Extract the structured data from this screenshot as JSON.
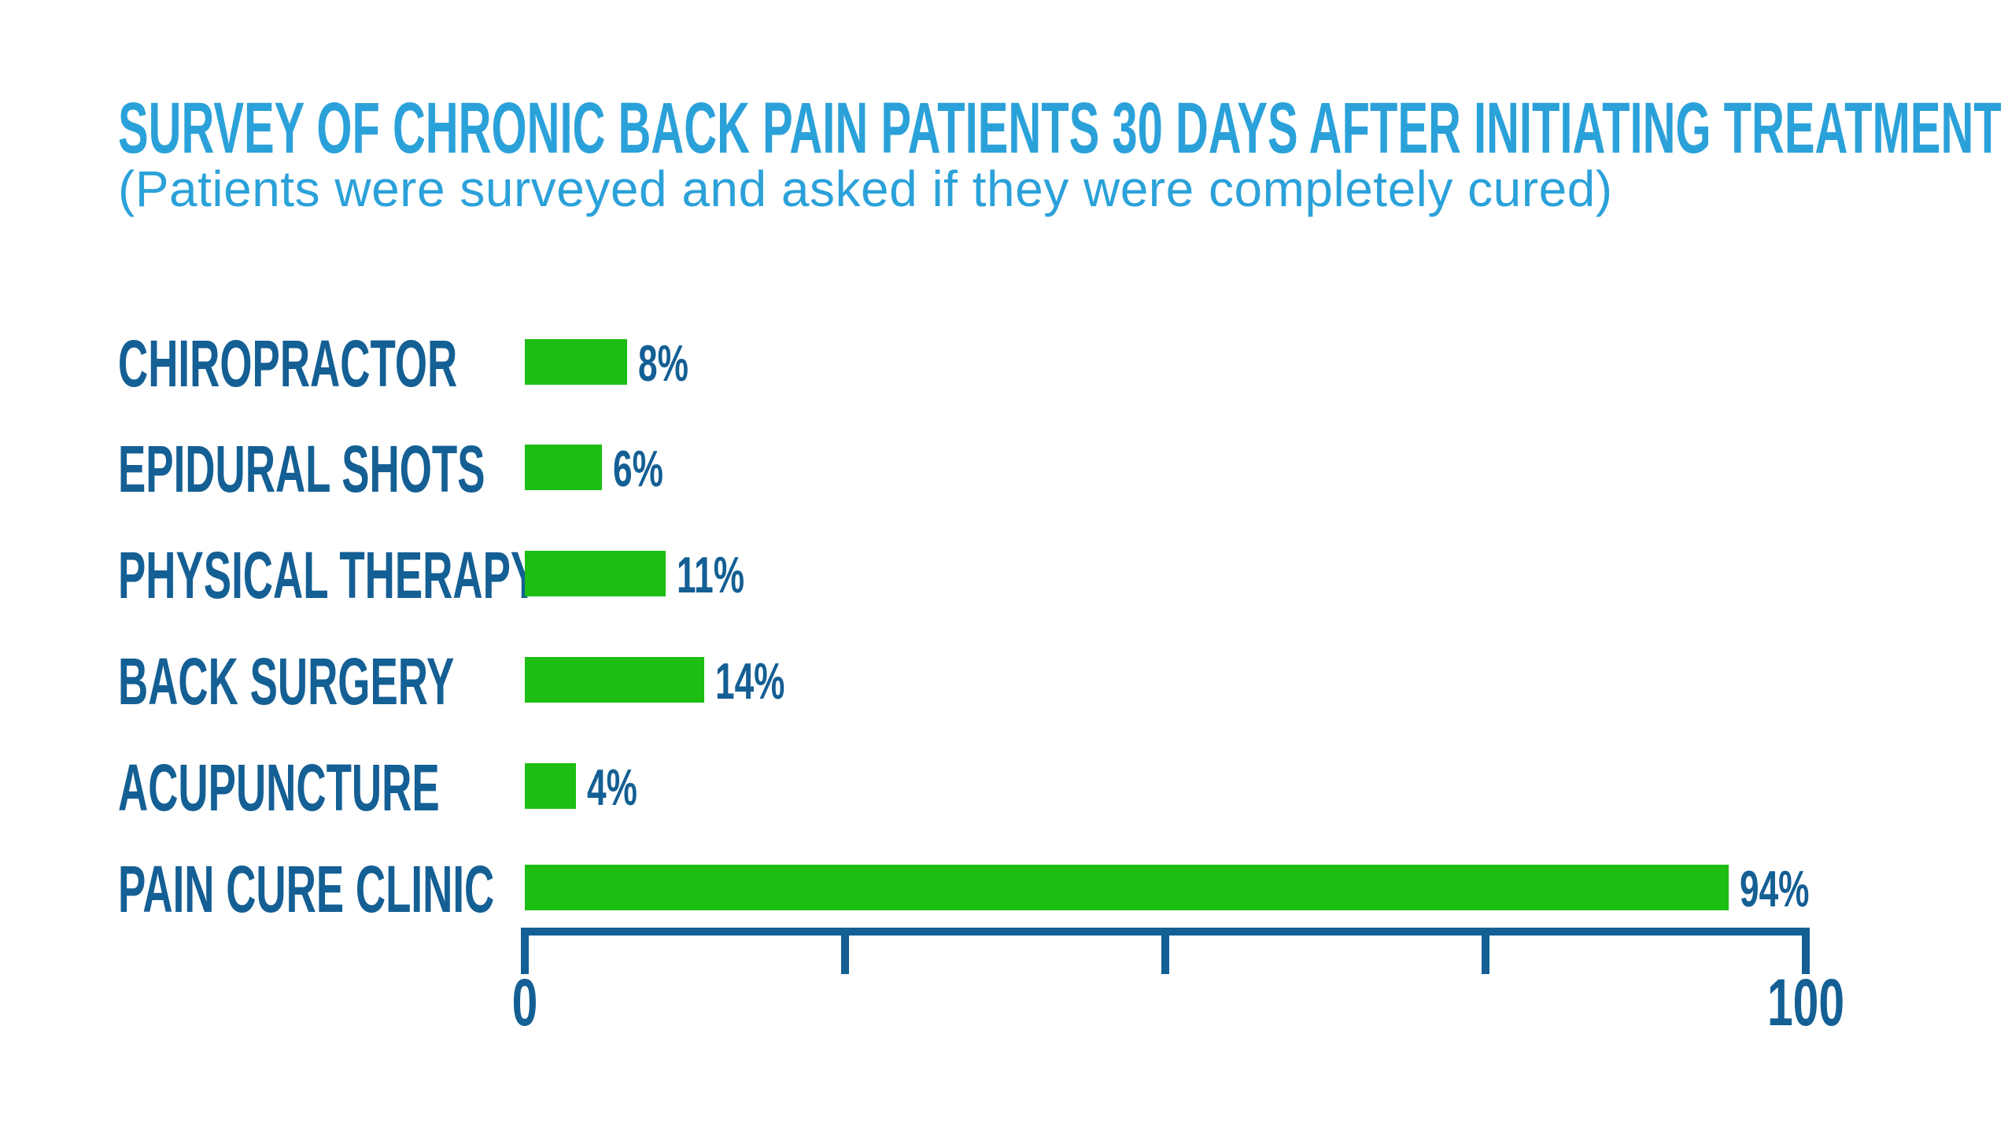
{
  "chart_data": {
    "type": "bar",
    "orientation": "horizontal",
    "title": "SURVEY OF CHRONIC BACK PAIN PATIENTS 30 DAYS AFTER INITIATING TREATMENT",
    "subtitle": "(Patients were surveyed and asked if they were completely cured)",
    "categories": [
      "CHIROPRACTOR",
      "EPIDURAL SHOTS",
      "PHYSICAL THERAPY",
      "BACK SURGERY",
      "ACUPUNCTURE",
      "PAIN CURE CLINIC"
    ],
    "values": [
      8,
      6,
      11,
      14,
      4,
      94
    ],
    "value_labels": [
      "8%",
      "6%",
      "11%",
      "14%",
      "4%",
      "94%"
    ],
    "xlabel": "",
    "ylabel": "",
    "xlim": [
      0,
      100
    ],
    "x_ticks": [
      0,
      25,
      50,
      75,
      100
    ],
    "x_tick_labels": [
      "0",
      "",
      "",
      "",
      "100"
    ],
    "grid": false,
    "legend": null,
    "colors": {
      "bar": "#1DBE13",
      "category_text": "#145F94",
      "value_text": "#145F94",
      "axis": "#145F94",
      "title_text": "#2BA1D9"
    }
  }
}
